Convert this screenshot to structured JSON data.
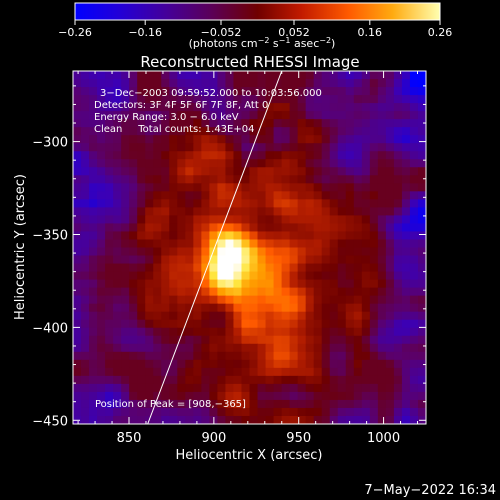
{
  "chart_data": {
    "type": "heatmap",
    "title": "Reconstructed RHESSI Image",
    "xlabel": "Heliocentric X (arcsec)",
    "ylabel": "Heliocentric Y (arcsec)",
    "xlim": [
      817,
      1025
    ],
    "ylim": [
      -452,
      -262
    ],
    "xticks": [
      850,
      900,
      950,
      1000
    ],
    "xtick_labels": [
      "850",
      "900",
      "950",
      "1000"
    ],
    "yticks": [
      -300,
      -350,
      -400,
      -450
    ],
    "ytick_labels": [
      "−300",
      "−350",
      "−400",
      "−450"
    ],
    "colorbar": {
      "range": [
        -0.26,
        0.26
      ],
      "ticks": [
        -0.26,
        -0.16,
        -0.052,
        0.052,
        0.16,
        0.26
      ],
      "tick_labels": [
        "−0.26",
        "−0.16",
        "−0.052",
        "0.052",
        "0.16",
        "0.26"
      ],
      "units_prefix": "(photons cm",
      "units_sup1": "−2",
      "units_mid": " s",
      "units_sup2": "−1",
      "units_mid2": " asec",
      "units_sup3": "−2",
      "units_suffix": ")"
    },
    "annotations": [
      "3−Dec−2003 09:59:52.000 to 10:03:56.000",
      "Detectors: 3F 4F 5F 6F 7F 8F, Att 0",
      "Energy Range: 3.0 − 6.0 keV",
      "Clean     Total counts: 1.43E+04"
    ],
    "peak_label": "Position of Peak = [908,−365]",
    "peak": [
      908,
      -365
    ],
    "limb_line": [
      [
        861,
        -452
      ],
      [
        940,
        -262
      ]
    ],
    "grid": false,
    "colors": {
      "background": "#000000",
      "colormap": [
        "#0000ff",
        "#3c00b4",
        "#5a006e",
        "#6e0000",
        "#b41e00",
        "#ff5a00",
        "#ffa000",
        "#ffe640",
        "#ffffff"
      ]
    }
  },
  "footer": {
    "timestamp": "7−May−2022 16:34"
  }
}
